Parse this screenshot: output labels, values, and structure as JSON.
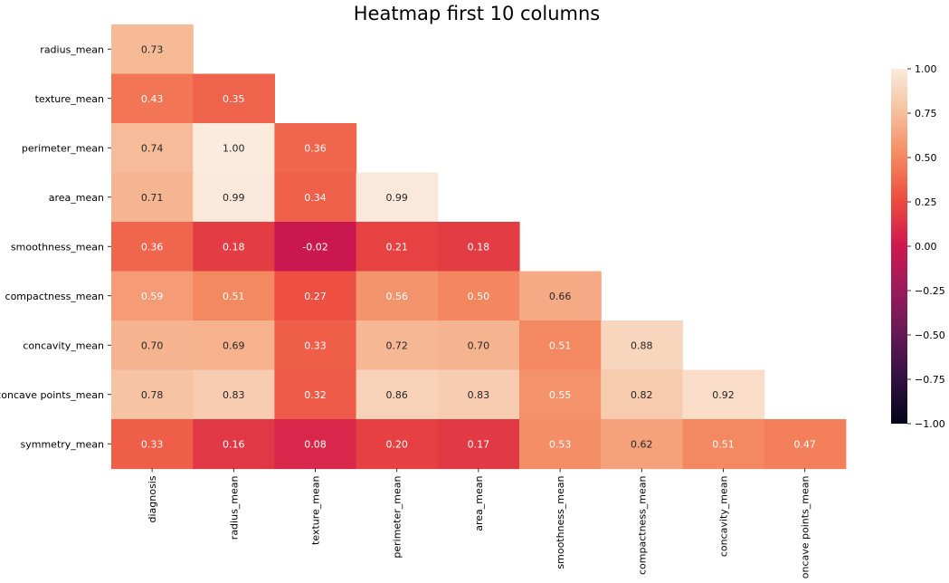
{
  "chart_data": {
    "type": "heatmap",
    "title": "Heatmap first 10 columns",
    "rows": [
      "radius_mean",
      "texture_mean",
      "perimeter_mean",
      "area_mean",
      "smoothness_mean",
      "compactness_mean",
      "concavity_mean",
      "concave points_mean",
      "symmetry_mean"
    ],
    "columns": [
      "diagnosis",
      "radius_mean",
      "texture_mean",
      "perimeter_mean",
      "area_mean",
      "smoothness_mean",
      "compactness_mean",
      "concavity_mean",
      "concave points_mean"
    ],
    "values": [
      [
        0.73,
        null,
        null,
        null,
        null,
        null,
        null,
        null,
        null
      ],
      [
        0.43,
        0.35,
        null,
        null,
        null,
        null,
        null,
        null,
        null
      ],
      [
        0.74,
        1.0,
        0.36,
        null,
        null,
        null,
        null,
        null,
        null
      ],
      [
        0.71,
        0.99,
        0.34,
        0.99,
        null,
        null,
        null,
        null,
        null
      ],
      [
        0.36,
        0.18,
        -0.02,
        0.21,
        0.18,
        null,
        null,
        null,
        null
      ],
      [
        0.59,
        0.51,
        0.27,
        0.56,
        0.5,
        0.66,
        null,
        null,
        null
      ],
      [
        0.7,
        0.69,
        0.33,
        0.72,
        0.7,
        0.51,
        0.88,
        null,
        null
      ],
      [
        0.78,
        0.83,
        0.32,
        0.86,
        0.83,
        0.55,
        0.82,
        0.92,
        null
      ],
      [
        0.33,
        0.16,
        0.08,
        0.2,
        0.17,
        0.53,
        0.62,
        0.51,
        0.47
      ]
    ],
    "value_labels": [
      [
        "0.73",
        "",
        "",
        "",
        "",
        "",
        "",
        "",
        ""
      ],
      [
        "0.43",
        "0.35",
        "",
        "",
        "",
        "",
        "",
        "",
        ""
      ],
      [
        "0.74",
        "1.00",
        "0.36",
        "",
        "",
        "",
        "",
        "",
        ""
      ],
      [
        "0.71",
        "0.99",
        "0.34",
        "0.99",
        "",
        "",
        "",
        "",
        ""
      ],
      [
        "0.36",
        "0.18",
        "-0.02",
        "0.21",
        "0.18",
        "",
        "",
        "",
        ""
      ],
      [
        "0.59",
        "0.51",
        "0.27",
        "0.56",
        "0.50",
        "0.66",
        "",
        "",
        ""
      ],
      [
        "0.70",
        "0.69",
        "0.33",
        "0.72",
        "0.70",
        "0.51",
        "0.88",
        "",
        ""
      ],
      [
        "0.78",
        "0.83",
        "0.32",
        "0.86",
        "0.83",
        "0.55",
        "0.82",
        "0.92",
        ""
      ],
      [
        "0.33",
        "0.16",
        "0.08",
        "0.20",
        "0.17",
        "0.53",
        "0.62",
        "0.51",
        "0.47"
      ]
    ],
    "vmin": -1,
    "vmax": 1,
    "colorscale": "rocket",
    "mask": "upper-triangle",
    "colorbar": {
      "ticks": [
        1.0,
        0.75,
        0.5,
        0.25,
        0.0,
        -0.25,
        -0.5,
        -0.75,
        -1.0
      ],
      "tick_labels": [
        "1.00",
        "0.75",
        "0.50",
        "0.25",
        "0.00",
        "−0.25",
        "−0.50",
        "−0.75",
        "−1.00"
      ],
      "position": "right"
    },
    "xlabel": "",
    "ylabel": ""
  }
}
